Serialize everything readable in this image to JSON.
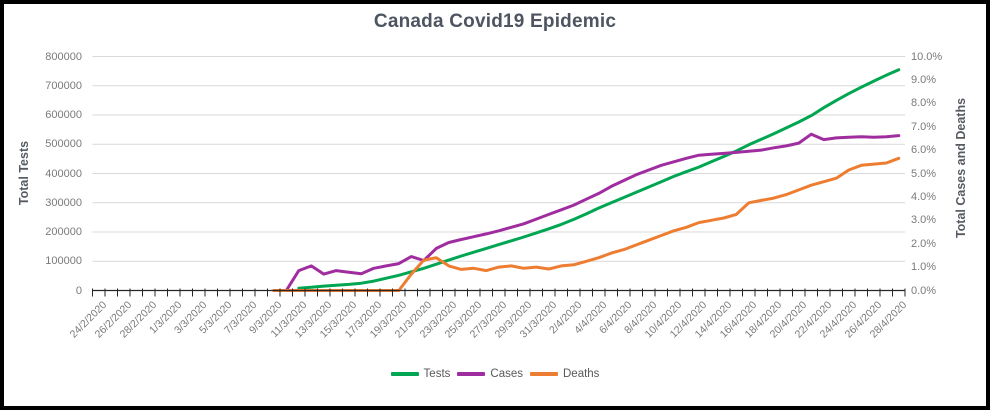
{
  "colors": {
    "tests_line": "#00A651",
    "cases_line": "#A02DA0",
    "deaths_line": "#ED7D31",
    "gridline": "#D9D9D9",
    "axis_line": "#262626",
    "tick_label": "#7A7A7A",
    "title_text": "#4E5560",
    "frame_border": "#000000"
  },
  "chart_data": {
    "type": "line",
    "title": "Canada Covid19 Epidemic",
    "grid": true,
    "legend_position": "bottom",
    "legend": [
      "Tests",
      "Cases",
      "Deaths"
    ],
    "left_axis": {
      "title": "Total Tests",
      "min": 0,
      "max": 800000,
      "step": 100000,
      "tick_labels": [
        "0",
        "100000",
        "200000",
        "300000",
        "400000",
        "500000",
        "600000",
        "700000",
        "800000"
      ]
    },
    "right_axis": {
      "title": "Total Cases and Deaths",
      "min": 0,
      "max": 10,
      "step": 1,
      "tick_labels": [
        "0.0%",
        "1.0%",
        "2.0%",
        "3.0%",
        "4.0%",
        "5.0%",
        "6.0%",
        "7.0%",
        "8.0%",
        "9.0%",
        "10.0%"
      ]
    },
    "x_tick_labels": [
      "24/2/2020",
      "26/2/2020",
      "28/2/2020",
      "1/3/2020",
      "3/3/2020",
      "5/3/2020",
      "7/3/2020",
      "9/3/2020",
      "11/3/2020",
      "13/3/2020",
      "15/3/2020",
      "17/3/2020",
      "19/3/2020",
      "21/3/2020",
      "23/3/2020",
      "25/3/2020",
      "27/3/2020",
      "29/3/2020",
      "31/3/2020",
      "2/4/2020",
      "4/4/2020",
      "6/4/2020",
      "8/4/2020",
      "10/4/2020",
      "12/4/2020",
      "14/4/2020",
      "16/4/2020",
      "18/4/2020",
      "20/4/2020",
      "22/4/2020",
      "24/4/2020",
      "26/4/2020",
      "28/4/2020"
    ],
    "categories": [
      "24/2/2020",
      "25/2/2020",
      "26/2/2020",
      "27/2/2020",
      "28/2/2020",
      "29/2/2020",
      "1/3/2020",
      "2/3/2020",
      "3/3/2020",
      "4/3/2020",
      "5/3/2020",
      "6/3/2020",
      "7/3/2020",
      "8/3/2020",
      "9/3/2020",
      "10/3/2020",
      "11/3/2020",
      "12/3/2020",
      "13/3/2020",
      "14/3/2020",
      "15/3/2020",
      "16/3/2020",
      "17/3/2020",
      "18/3/2020",
      "19/3/2020",
      "20/3/2020",
      "21/3/2020",
      "22/3/2020",
      "23/3/2020",
      "24/3/2020",
      "25/3/2020",
      "26/3/2020",
      "27/3/2020",
      "28/3/2020",
      "29/3/2020",
      "30/3/2020",
      "31/3/2020",
      "1/4/2020",
      "2/4/2020",
      "3/4/2020",
      "4/4/2020",
      "5/4/2020",
      "6/4/2020",
      "7/4/2020",
      "8/4/2020",
      "9/4/2020",
      "10/4/2020",
      "11/4/2020",
      "12/4/2020",
      "13/4/2020",
      "14/4/2020",
      "15/4/2020",
      "16/4/2020",
      "17/4/2020",
      "18/4/2020",
      "19/4/2020",
      "20/4/2020",
      "21/4/2020",
      "22/4/2020",
      "23/4/2020",
      "24/4/2020",
      "25/4/2020",
      "26/4/2020",
      "27/4/2020",
      "28/4/2020"
    ],
    "series": [
      {
        "name": "Tests",
        "axis": "left",
        "color": "#00A651",
        "values": [
          null,
          null,
          null,
          null,
          null,
          null,
          null,
          null,
          null,
          null,
          null,
          null,
          null,
          null,
          null,
          null,
          8000,
          11000,
          15000,
          18000,
          21000,
          25000,
          32000,
          42000,
          52000,
          64000,
          76000,
          90000,
          104000,
          118000,
          131000,
          144000,
          157000,
          170000,
          183000,
          197000,
          211000,
          226000,
          243000,
          262000,
          282000,
          300000,
          318000,
          336000,
          354000,
          372000,
          390000,
          406000,
          422000,
          440000,
          458000,
          477000,
          498000,
          517000,
          536000,
          556000,
          576000,
          598000,
          625000,
          650000,
          673000,
          695000,
          716000,
          736000,
          755000
        ]
      },
      {
        "name": "Cases",
        "axis": "right",
        "color": "#A02DA0",
        "values": [
          null,
          null,
          null,
          null,
          null,
          null,
          null,
          null,
          null,
          null,
          null,
          null,
          null,
          null,
          0,
          0,
          0.85,
          1.05,
          0.7,
          0.85,
          0.78,
          0.72,
          0.95,
          1.05,
          1.15,
          1.45,
          1.28,
          1.8,
          2.05,
          2.18,
          2.3,
          2.42,
          2.55,
          2.7,
          2.85,
          3.05,
          3.25,
          3.45,
          3.65,
          3.9,
          4.15,
          4.45,
          4.7,
          4.95,
          5.15,
          5.35,
          5.5,
          5.65,
          5.78,
          5.82,
          5.86,
          5.9,
          5.95,
          6.0,
          6.1,
          6.18,
          6.3,
          6.68,
          6.45,
          6.52,
          6.55,
          6.57,
          6.55,
          6.57,
          6.62
        ]
      },
      {
        "name": "Deaths",
        "axis": "right",
        "color": "#ED7D31",
        "values": [
          null,
          null,
          null,
          null,
          null,
          null,
          null,
          null,
          null,
          null,
          null,
          null,
          null,
          null,
          0,
          0,
          0,
          0,
          0,
          0,
          0,
          0,
          0,
          0,
          0,
          0.7,
          1.3,
          1.4,
          1.05,
          0.9,
          0.95,
          0.85,
          1.0,
          1.05,
          0.95,
          1.0,
          0.92,
          1.05,
          1.1,
          1.25,
          1.4,
          1.6,
          1.75,
          1.95,
          2.15,
          2.35,
          2.55,
          2.7,
          2.9,
          3.0,
          3.1,
          3.25,
          3.75,
          3.85,
          3.95,
          4.1,
          4.3,
          4.5,
          4.65,
          4.8,
          5.15,
          5.35,
          5.4,
          5.45,
          5.65
        ]
      }
    ]
  }
}
